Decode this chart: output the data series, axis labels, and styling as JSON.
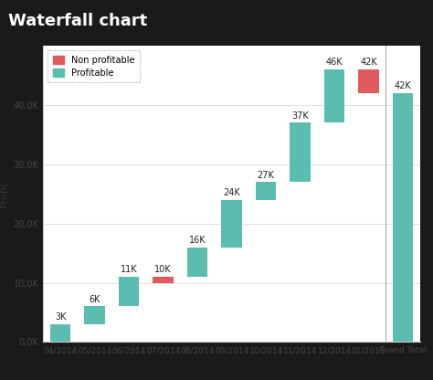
{
  "title": "Waterfall chart",
  "title_bg": "#111111",
  "title_color": "#ffffff",
  "fig_bg": "#2a2a2a",
  "ylabel": "Profit",
  "categories": [
    "04/2014",
    "05/2014",
    "06/2014",
    "07/2014",
    "08/2014",
    "09/2014",
    "10/2014",
    "11/2014",
    "12/2014",
    "01/2015",
    "Grand Total"
  ],
  "bar_tops": [
    3000,
    6000,
    11000,
    11000,
    16000,
    24000,
    27000,
    37000,
    46000,
    46000,
    42000
  ],
  "bar_bottoms": [
    0,
    3000,
    6000,
    10000,
    11000,
    16000,
    24000,
    27000,
    37000,
    42000,
    0
  ],
  "is_negative": [
    false,
    false,
    false,
    true,
    false,
    false,
    false,
    false,
    false,
    true,
    false
  ],
  "is_grand_total": [
    false,
    false,
    false,
    false,
    false,
    false,
    false,
    false,
    false,
    false,
    true
  ],
  "label_values": [
    3000,
    6000,
    11000,
    10000,
    16000,
    24000,
    27000,
    37000,
    46000,
    42000,
    42000
  ],
  "labels": [
    "3K",
    "6K",
    "11K",
    "10K",
    "16K",
    "24K",
    "27K",
    "37K",
    "46K",
    "42K",
    "42K"
  ],
  "color_profitable": "#5bbcb0",
  "color_nonprofitable": "#e05c5c",
  "chart_bg": "#ffffff",
  "outer_bg": "#1a1a1a",
  "grid_color": "#e0e0e0",
  "ylim": [
    0,
    50000
  ],
  "yticks": [
    0,
    10000,
    20000,
    30000,
    40000
  ],
  "ytick_labels": [
    "0,0K",
    "10,0K",
    "20,0K",
    "30,0K",
    "40,0K"
  ],
  "legend_nonprofitable": "Non profitable",
  "legend_profitable": "Profitable",
  "bar_width": 0.6
}
